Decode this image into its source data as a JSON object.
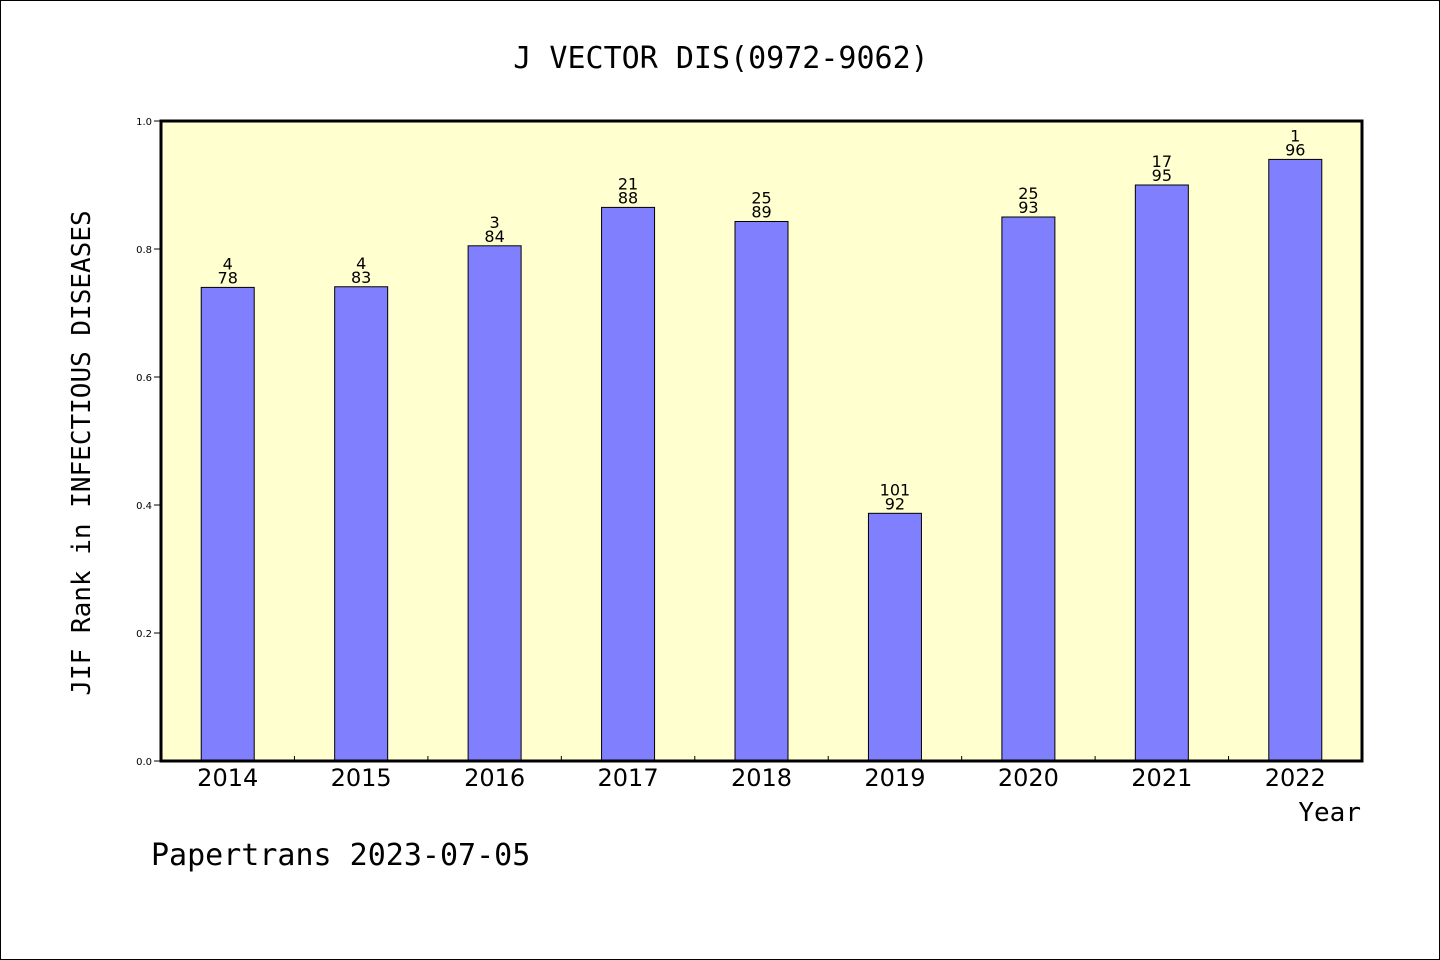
{
  "chart_data": {
    "type": "bar",
    "title": "J VECTOR DIS(0972-9062)",
    "xlabel": "Year",
    "ylabel": "JIF Rank in INFECTIOUS DISEASES",
    "categories": [
      "2014",
      "2015",
      "2016",
      "2017",
      "2018",
      "2019",
      "2020",
      "2021",
      "2022"
    ],
    "values": [
      0.74,
      0.741,
      0.805,
      0.865,
      0.843,
      0.387,
      0.85,
      0.9,
      0.94
    ],
    "bar_labels": [
      [
        "4",
        "78"
      ],
      [
        "4",
        "83"
      ],
      [
        "3",
        "84"
      ],
      [
        "21",
        "88"
      ],
      [
        "25",
        "89"
      ],
      [
        "101",
        "92"
      ],
      [
        "25",
        "93"
      ],
      [
        "17",
        "95"
      ],
      [
        "1",
        "96"
      ]
    ],
    "ylim": [
      0,
      1.0
    ],
    "yticks": [
      "0.0",
      "0.2",
      "0.4",
      "0.6",
      "0.8",
      "1.0"
    ],
    "grid": false,
    "colors": {
      "bar": "#8080ff",
      "plot_background": "#ffffd0",
      "bar_edge": "#000000"
    }
  },
  "footer": {
    "text": "Papertrans 2023-07-05"
  }
}
